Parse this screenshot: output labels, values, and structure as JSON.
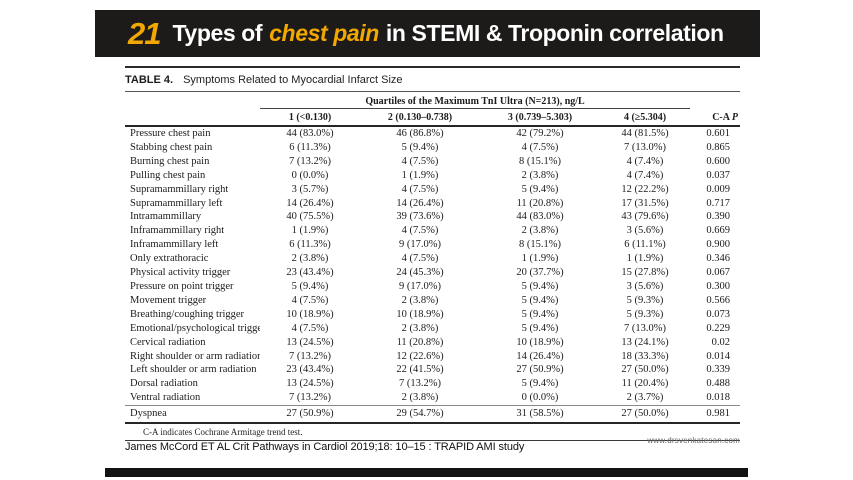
{
  "header": {
    "number": "21",
    "title_pre": "Types of",
    "title_highlight": "chest pain",
    "title_post": "in STEMI & Troponin correlation",
    "bg_color": "#1d1b19",
    "accent_color": "#f2a800"
  },
  "table": {
    "caption_label": "TABLE 4.",
    "caption_text": "Symptoms Related to Myocardial Infarct Size",
    "spanner": "Quartiles of the Maximum TnI Ultra (N=213), ng/L",
    "columns": [
      "1 (<0.130)",
      "2 (0.130–0.738)",
      "3 (0.739–5.303)",
      "4 (≥5.304)"
    ],
    "pcol_prefix": "C-A ",
    "pcol_italic": "P",
    "rows": [
      {
        "label": "Pressure chest pain",
        "q1": "44 (83.0%)",
        "q2": "46 (86.8%)",
        "q3": "42 (79.2%)",
        "q4": "44 (81.5%)",
        "p": "0.601"
      },
      {
        "label": "Stabbing chest pain",
        "q1": "6 (11.3%)",
        "q2": "5 (9.4%)",
        "q3": "4 (7.5%)",
        "q4": "7 (13.0%)",
        "p": "0.865"
      },
      {
        "label": "Burning chest pain",
        "q1": "7 (13.2%)",
        "q2": "4 (7.5%)",
        "q3": "8 (15.1%)",
        "q4": "4 (7.4%)",
        "p": "0.600"
      },
      {
        "label": "Pulling chest pain",
        "q1": "0 (0.0%)",
        "q2": "1 (1.9%)",
        "q3": "2 (3.8%)",
        "q4": "4 (7.4%)",
        "p": "0.037"
      },
      {
        "label": "Supramammillary right",
        "q1": "3 (5.7%)",
        "q2": "4 (7.5%)",
        "q3": "5 (9.4%)",
        "q4": "12 (22.2%)",
        "p": "0.009"
      },
      {
        "label": "Supramammillary left",
        "q1": "14 (26.4%)",
        "q2": "14 (26.4%)",
        "q3": "11 (20.8%)",
        "q4": "17 (31.5%)",
        "p": "0.717"
      },
      {
        "label": "Intramammillary",
        "q1": "40 (75.5%)",
        "q2": "39 (73.6%)",
        "q3": "44 (83.0%)",
        "q4": "43 (79.6%)",
        "p": "0.390"
      },
      {
        "label": "Inframammillary right",
        "q1": "1 (1.9%)",
        "q2": "4 (7.5%)",
        "q3": "2 (3.8%)",
        "q4": "3 (5.6%)",
        "p": "0.669"
      },
      {
        "label": "Inframammillary left",
        "q1": "6 (11.3%)",
        "q2": "9 (17.0%)",
        "q3": "8 (15.1%)",
        "q4": "6 (11.1%)",
        "p": "0.900"
      },
      {
        "label": "Only extrathoracic",
        "q1": "2 (3.8%)",
        "q2": "4 (7.5%)",
        "q3": "1 (1.9%)",
        "q4": "1 (1.9%)",
        "p": "0.346"
      },
      {
        "label": "Physical activity trigger",
        "q1": "23 (43.4%)",
        "q2": "24 (45.3%)",
        "q3": "20 (37.7%)",
        "q4": "15 (27.8%)",
        "p": "0.067"
      },
      {
        "label": "Pressure on point trigger",
        "q1": "5 (9.4%)",
        "q2": "9 (17.0%)",
        "q3": "5 (9.4%)",
        "q4": "3 (5.6%)",
        "p": "0.300"
      },
      {
        "label": "Movement trigger",
        "q1": "4 (7.5%)",
        "q2": "2 (3.8%)",
        "q3": "5 (9.4%)",
        "q4": "5 (9.3%)",
        "p": "0.566"
      },
      {
        "label": "Breathing/coughing trigger",
        "q1": "10 (18.9%)",
        "q2": "10 (18.9%)",
        "q3": "5 (9.4%)",
        "q4": "5 (9.3%)",
        "p": "0.073"
      },
      {
        "label": "Emotional/psychological trigger",
        "q1": "4 (7.5%)",
        "q2": "2 (3.8%)",
        "q3": "5 (9.4%)",
        "q4": "7 (13.0%)",
        "p": "0.229"
      },
      {
        "label": "Cervical radiation",
        "q1": "13 (24.5%)",
        "q2": "11 (20.8%)",
        "q3": "10 (18.9%)",
        "q4": "13 (24.1%)",
        "p": "0.02"
      },
      {
        "label": "Right shoulder or arm radiation",
        "q1": "7 (13.2%)",
        "q2": "12 (22.6%)",
        "q3": "14 (26.4%)",
        "q4": "18 (33.3%)",
        "p": "0.014"
      },
      {
        "label": "Left shoulder or arm radiation",
        "q1": "23 (43.4%)",
        "q2": "22 (41.5%)",
        "q3": "27 (50.9%)",
        "q4": "27 (50.0%)",
        "p": "0.339"
      },
      {
        "label": "Dorsal radiation",
        "q1": "13 (24.5%)",
        "q2": "7 (13.2%)",
        "q3": "5 (9.4%)",
        "q4": "11 (20.4%)",
        "p": "0.488"
      },
      {
        "label": "Ventral radiation",
        "q1": "7 (13.2%)",
        "q2": "2 (3.8%)",
        "q3": "0 (0.0%)",
        "q4": "2 (3.7%)",
        "p": "0.018"
      },
      {
        "label": "Dyspnea",
        "q1": "27 (50.9%)",
        "q2": "29 (54.7%)",
        "q3": "31 (58.5%)",
        "q4": "27 (50.0%)",
        "p": "0.981",
        "divider_above": true
      }
    ],
    "footnote": "C-A indicates Cochrane Armitage trend test."
  },
  "footer": {
    "citation": "James McCord ET AL Crit Pathways in Cardiol 2019;18: 10–15  : TRAPID AMI study",
    "website": "www.drsvenkatesan.com"
  }
}
